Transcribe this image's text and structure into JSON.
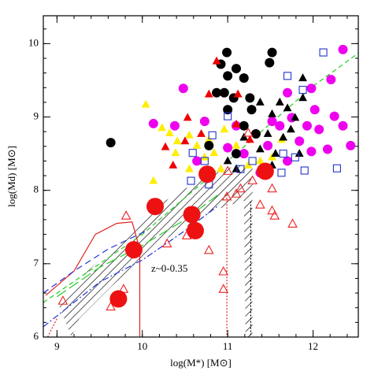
{
  "chart_data": {
    "type": "scatter",
    "xlabel": "log(M*) [M⊙]",
    "ylabel": "log(Md) [M⊙]",
    "annotation": "z~0-0.35",
    "annotation_color": "#22cc22",
    "xlim": [
      8.84,
      12.53
    ],
    "ylim": [
      6,
      10.38
    ],
    "xticks": [
      9,
      10,
      11,
      12
    ],
    "yticks": [
      6,
      7,
      8,
      9,
      10
    ],
    "minor_ticks_per_major": 5,
    "hatch_region": {
      "color": "#000000",
      "x": [
        9.03,
        9.35,
        9.81,
        10.27,
        10.73,
        11.1,
        11.29,
        11.29,
        11.21,
        11.19,
        10.82,
        10.18,
        9.63,
        9.26,
        9.17
      ],
      "y": [
        6.41,
        6.89,
        7.38,
        7.86,
        8.18,
        8.34,
        8.34,
        6,
        6,
        7.86,
        7.72,
        7.27,
        6.68,
        6.25,
        6
      ]
    },
    "lines": [
      {
        "color": "#22cc22",
        "dash": "6 4",
        "x": [
          8.84,
          10,
          11,
          12,
          12.53
        ],
        "y": [
          6.47,
          7.4,
          8.4,
          9.42,
          9.87
        ]
      },
      {
        "color": "#dd2222",
        "dash": "none",
        "x": [
          8.87,
          9.2,
          9.45,
          9.7,
          9.88,
          9.97,
          9.97
        ],
        "y": [
          6.57,
          6.9,
          7.4,
          7.55,
          7.57,
          7.2,
          6
        ]
      },
      {
        "color": "#2233dd",
        "dash": "8 5",
        "x": [
          8.84,
          9.2,
          9.6,
          10.05
        ],
        "y": [
          6.6,
          6.9,
          7.2,
          7.45
        ]
      },
      {
        "color": "#2233dd",
        "dash": "8 3 2 3",
        "x": [
          8.84,
          9.5,
          10,
          10.5,
          10.9
        ],
        "y": [
          6.14,
          6.75,
          7.05,
          7.45,
          7.8
        ]
      },
      {
        "color": "#22cc22",
        "dash": "14 5",
        "x": [
          9,
          9.5,
          10,
          10.5,
          10.9
        ],
        "y": [
          6.55,
          6.95,
          7.25,
          7.6,
          7.95
        ]
      },
      {
        "color": "#dd2222",
        "dash": "2 2",
        "x": [
          10.99,
          10.99
        ],
        "y": [
          7.94,
          6
        ]
      },
      {
        "color": "#dd2222",
        "dash": "2 2",
        "x": [
          8.89,
          9.0
        ],
        "y": [
          6,
          6.25
        ]
      },
      {
        "color": "#000000",
        "dash": "2 2",
        "x": [
          11.27,
          11.27
        ],
        "y": [
          7.85,
          6
        ]
      }
    ],
    "series": [
      {
        "color": "#ee00ee",
        "marker": "circle",
        "filled": true,
        "size": 6,
        "x": [
          12.35,
          12.21,
          11.98,
          11.7,
          10.48,
          10.13,
          10.38,
          10.73,
          11.52,
          11.75,
          12.02,
          12.25,
          12.44,
          12.07,
          11.84,
          12.17,
          11.19,
          11.38,
          11.0,
          11.61,
          11.93,
          12.35,
          11.7,
          11.98,
          11.1,
          10.64,
          11.47
        ],
        "y": [
          9.92,
          9.51,
          9.39,
          9.33,
          9.39,
          8.91,
          8.88,
          8.94,
          8.94,
          8.99,
          9.1,
          9.01,
          8.61,
          8.83,
          8.67,
          8.56,
          8.5,
          8.24,
          8.58,
          8.88,
          8.88,
          8.88,
          8.4,
          8.53,
          8.88,
          8.4,
          8.61
        ]
      },
      {
        "color": "#ffee00",
        "marker": "triangle",
        "filled": true,
        "size": 6,
        "x": [
          10.04,
          10.23,
          10.13,
          10.32,
          10.55,
          10.39,
          10.64,
          10.78,
          10.84,
          10.96,
          11.1,
          11.24,
          11.38,
          11.52,
          10.55,
          10.92,
          11.63,
          10.41,
          10.73
        ],
        "y": [
          9.17,
          8.85,
          8.13,
          8.78,
          8.75,
          8.51,
          8.61,
          8.69,
          8.51,
          8.83,
          8.61,
          8.34,
          8.4,
          8.45,
          8.29,
          8.29,
          8.69,
          8.67,
          8.45
        ]
      },
      {
        "color": "#000000",
        "marker": "circle",
        "filled": true,
        "size": 6,
        "x": [
          9.63,
          10.99,
          11.0,
          10.92,
          11.1,
          11.19,
          10.96,
          10.87,
          11.07,
          11.26,
          11.52,
          11.49,
          10.78,
          11.0,
          11.28,
          11.19,
          11.1,
          11.33
        ],
        "y": [
          8.65,
          9.88,
          9.56,
          9.72,
          9.66,
          9.53,
          9.33,
          9.33,
          9.26,
          9.26,
          9.88,
          9.74,
          8.61,
          9.1,
          9.1,
          8.88,
          8.5,
          8.77
        ]
      },
      {
        "color": "#000000",
        "marker": "triangle",
        "filled": true,
        "size": 6,
        "x": [
          11.38,
          11.52,
          11.61,
          11.7,
          11.88,
          11.79,
          11.47,
          11.38,
          11.56,
          11.19,
          11.1,
          11.84,
          11.52,
          11.0,
          11.65,
          11.88,
          11.74
        ],
        "y": [
          9.2,
          9.04,
          9.2,
          9.12,
          9.26,
          8.99,
          8.77,
          8.56,
          8.5,
          8.72,
          8.29,
          8.5,
          8.34,
          8.4,
          8.72,
          9.53,
          8.83
        ]
      },
      {
        "color": "#ee0000",
        "marker": "triangle",
        "filled": true,
        "size": 6,
        "x": [
          10.87,
          11.12,
          11.1,
          10.53,
          10.69,
          10.5,
          10.78,
          10.27,
          11.26,
          10.36
        ],
        "y": [
          9.76,
          9.31,
          8.9,
          8.99,
          8.77,
          8.67,
          9.31,
          8.59,
          8.69,
          8.34
        ]
      },
      {
        "color": "#2233cc",
        "marker": "square",
        "filled": false,
        "size": 4.5,
        "x": [
          12.12,
          11.7,
          11.88,
          11.0,
          10.82,
          10.59,
          10.57,
          10.73,
          11.29,
          11.79,
          11.9,
          12.28,
          11.15,
          10.78,
          11.65,
          11.63
        ],
        "y": [
          9.88,
          9.56,
          9.37,
          9.01,
          8.75,
          8.51,
          8.13,
          8.4,
          8.4,
          8.45,
          8.27,
          8.3,
          8.29,
          8.08,
          8.5,
          8.24
        ]
      },
      {
        "color": "#ee2222",
        "marker": "triangle",
        "filled": false,
        "size": 6,
        "x": [
          11.24,
          11.0,
          11.15,
          11.1,
          10.99,
          11.29,
          11.52,
          11.52,
          11.55,
          11.38,
          11.76,
          10.52,
          10.29,
          10.78,
          10.95,
          10.95,
          9.78,
          9.63,
          9.07,
          9.81
        ],
        "y": [
          8.78,
          8.26,
          8.02,
          7.95,
          7.91,
          8.13,
          8.02,
          7.72,
          7.65,
          7.8,
          7.54,
          7.38,
          7.27,
          7.18,
          6.89,
          6.65,
          6.65,
          6.41,
          6.49,
          7.65
        ]
      },
      {
        "color": "#ee1111",
        "marker": "circle",
        "filled": true,
        "size": 11,
        "x": [
          9.72,
          9.9,
          10.15,
          10.58,
          10.62,
          10.76,
          11.44
        ],
        "y": [
          6.52,
          7.19,
          7.78,
          7.67,
          7.45,
          8.22,
          8.26
        ]
      }
    ]
  }
}
